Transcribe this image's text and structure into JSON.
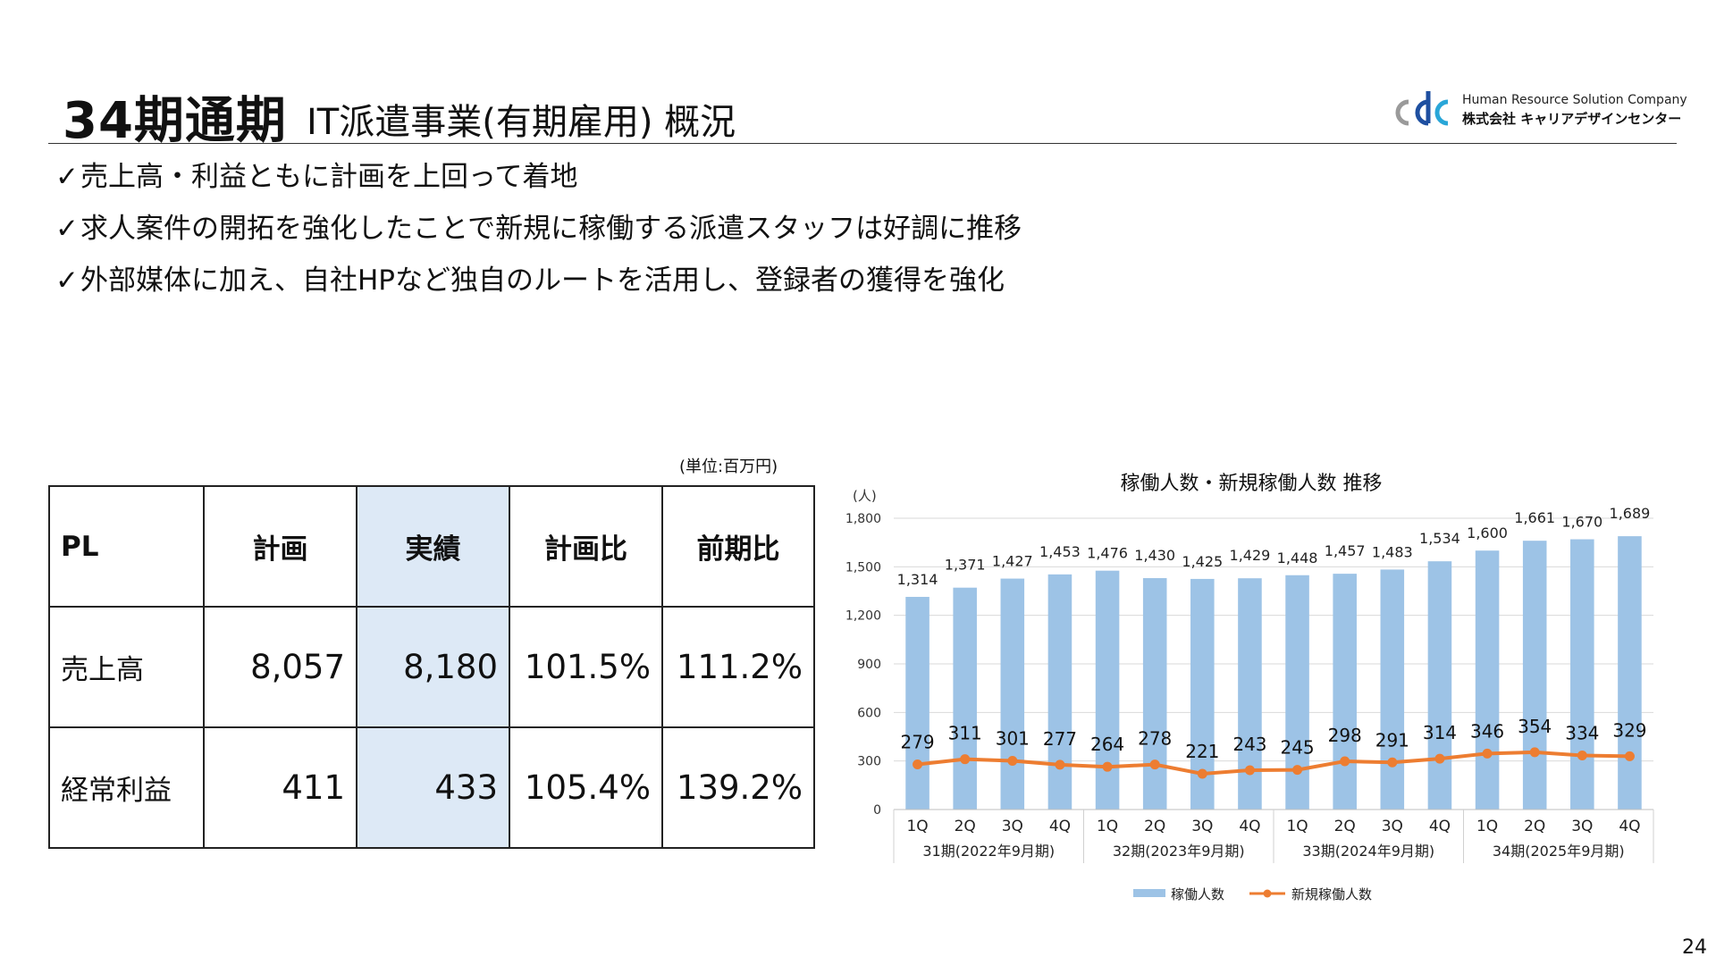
{
  "header": {
    "title_main": "34期通期",
    "title_sub": "IT派遣事業(有期雇用) 概況",
    "logo_mark": "cdc",
    "logo_en": "Human Resource Solution Company",
    "logo_jp": "株式会社 キャリアデザインセンター"
  },
  "bullets": [
    {
      "check": "✓",
      "text": "売上高・利益ともに計画を上回って着地"
    },
    {
      "check": "✓",
      "text": "求人案件の開拓を強化したことで新規に稼働する派遣スタッフは好調に推移"
    },
    {
      "check": "✓",
      "text": "外部媒体に加え、自社HPなど独自のルートを活用し、登録者の獲得を強化"
    }
  ],
  "table": {
    "unit": "(単位:百万円)",
    "headers": [
      "PL",
      "計画",
      "実績",
      "計画比",
      "前期比"
    ],
    "rows": [
      {
        "label": "売上高",
        "plan": "8,057",
        "actual": "8,180",
        "vs_plan": "101.5%",
        "vs_prev": "111.2%"
      },
      {
        "label": "経常利益",
        "plan": "411",
        "actual": "433",
        "vs_plan": "105.4%",
        "vs_prev": "139.2%"
      }
    ],
    "highlight_color": "#dde9f6"
  },
  "chart_data": {
    "type": "bar",
    "title": "稼働人数・新規稼働人数 推移",
    "ylabel": "(人)",
    "ylim": [
      0,
      1800
    ],
    "yticks": [
      0,
      300,
      600,
      900,
      1200,
      1500,
      1800
    ],
    "ytick_labels": [
      "0",
      "300",
      "600",
      "900",
      "1,200",
      "1,500",
      "1,800"
    ],
    "categories": [
      "1Q",
      "2Q",
      "3Q",
      "4Q",
      "1Q",
      "2Q",
      "3Q",
      "4Q",
      "1Q",
      "2Q",
      "3Q",
      "4Q",
      "1Q",
      "2Q",
      "3Q",
      "4Q"
    ],
    "groups": [
      {
        "label": "31期(2022年9月期)",
        "count": 4
      },
      {
        "label": "32期(2023年9月期)",
        "count": 4
      },
      {
        "label": "33期(2024年9月期)",
        "count": 4
      },
      {
        "label": "34期(2025年9月期)",
        "count": 4
      }
    ],
    "grid": true,
    "legend": "bottom",
    "series": [
      {
        "name": "稼働人数",
        "type": "bar",
        "color": "#9dc3e6",
        "values": [
          1314,
          1371,
          1427,
          1453,
          1476,
          1430,
          1425,
          1429,
          1448,
          1457,
          1483,
          1534,
          1600,
          1661,
          1670,
          1689
        ],
        "labels": [
          "1,314",
          "1,371",
          "1,427",
          "1,453",
          "1,476",
          "1,430",
          "1,425",
          "1,429",
          "1,448",
          "1,457",
          "1,483",
          "1,534",
          "1,600",
          "1,661",
          "1,670",
          "1,689"
        ]
      },
      {
        "name": "新規稼働人数",
        "type": "line",
        "color": "#ed7d31",
        "values": [
          279,
          311,
          301,
          277,
          264,
          278,
          221,
          243,
          245,
          298,
          291,
          314,
          346,
          354,
          334,
          329
        ],
        "labels": [
          "279",
          "311",
          "301",
          "277",
          "264",
          "278",
          "221",
          "243",
          "245",
          "298",
          "291",
          "314",
          "346",
          "354",
          "334",
          "329"
        ]
      }
    ]
  },
  "page_number": "24"
}
